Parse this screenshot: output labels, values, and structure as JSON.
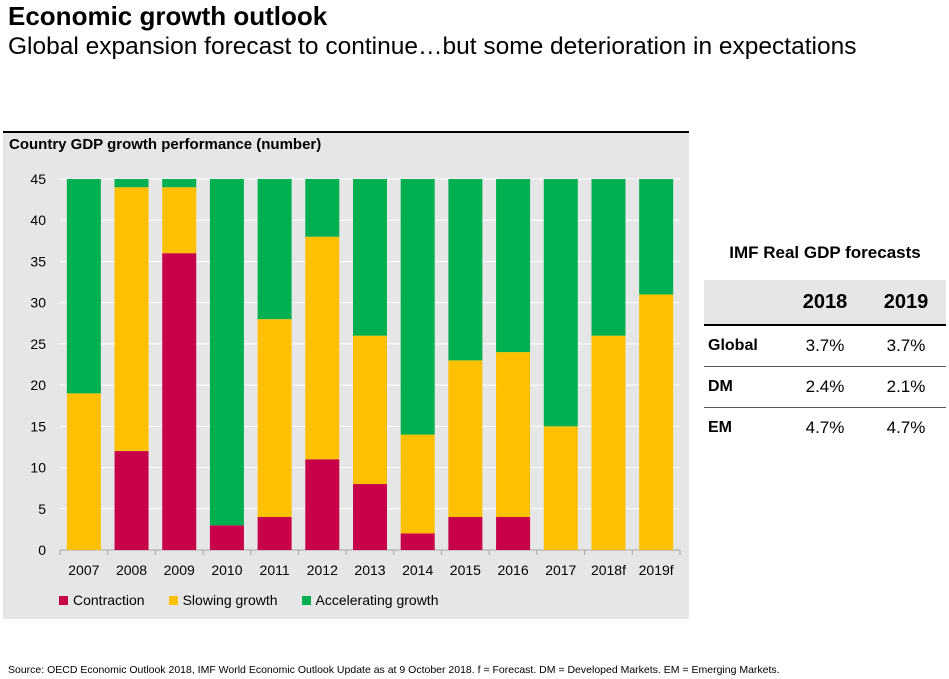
{
  "title": "Economic growth outlook",
  "subtitle": "Global expansion forecast to continue…but some deterioration in expectations",
  "chart_data": {
    "type": "bar",
    "stacked": true,
    "title": "Country GDP growth performance (number)",
    "categories": [
      "2007",
      "2008",
      "2009",
      "2010",
      "2011",
      "2012",
      "2013",
      "2014",
      "2015",
      "2016",
      "2017",
      "2018f",
      "2019f"
    ],
    "series": [
      {
        "name": "Contraction",
        "color": "#c8004a",
        "values": [
          0,
          12,
          36,
          3,
          4,
          11,
          8,
          2,
          4,
          4,
          0,
          0,
          0
        ]
      },
      {
        "name": "Slowing growth",
        "color": "#ffc000",
        "values": [
          19,
          32,
          8,
          0,
          24,
          27,
          18,
          12,
          19,
          20,
          15,
          26,
          31
        ]
      },
      {
        "name": "Accelerating growth",
        "color": "#00b050",
        "values": [
          26,
          1,
          1,
          42,
          17,
          7,
          19,
          31,
          22,
          21,
          30,
          19,
          14
        ]
      }
    ],
    "ylim": [
      0,
      45
    ],
    "yticks": [
      0,
      5,
      10,
      15,
      20,
      25,
      30,
      35,
      40,
      45
    ],
    "grid": true,
    "legend_position": "bottom-left",
    "xlabel": "",
    "ylabel": ""
  },
  "legend": {
    "contraction": "Contraction",
    "slowing": "Slowing growth",
    "accelerating": "Accelerating growth"
  },
  "imf_table": {
    "title": "IMF Real GDP forecasts",
    "columns": [
      "",
      "2018",
      "2019"
    ],
    "rows": [
      {
        "label": "Global",
        "y2018": "3.7%",
        "y2019": "3.7%"
      },
      {
        "label": "DM",
        "y2018": "2.4%",
        "y2019": "2.1%"
      },
      {
        "label": "EM",
        "y2018": "4.7%",
        "y2019": "4.7%"
      }
    ]
  },
  "source": "Source: OECD Economic Outlook 2018, IMF World Economic Outlook Update as at 9 October 2018. f = Forecast. DM = Developed Markets. EM = Emerging Markets."
}
